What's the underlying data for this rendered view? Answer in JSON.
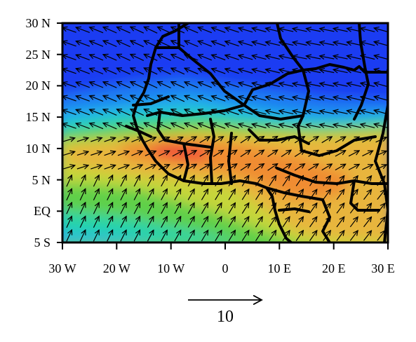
{
  "map": {
    "region": "West Africa and tropical Atlantic",
    "lon_range": [
      -30,
      30
    ],
    "lat_range": [
      -5,
      30
    ],
    "field_colormap": [
      "#1b3cf2",
      "#1e7df2",
      "#21b6e8",
      "#25d4a8",
      "#5ed048",
      "#c6d63a",
      "#e8b53c",
      "#f08c30",
      "#f0503a"
    ],
    "line_color": "#000000"
  },
  "axes": {
    "y_ticks": [
      "30 N",
      "25 N",
      "20 N",
      "15 N",
      "10 N",
      "5 N",
      "EQ",
      "5 S"
    ],
    "x_ticks": [
      "30 W",
      "20 W",
      "10 W",
      "0",
      "10 E",
      "20 E",
      "30 E"
    ]
  },
  "reference_vector": {
    "label": "10"
  }
}
